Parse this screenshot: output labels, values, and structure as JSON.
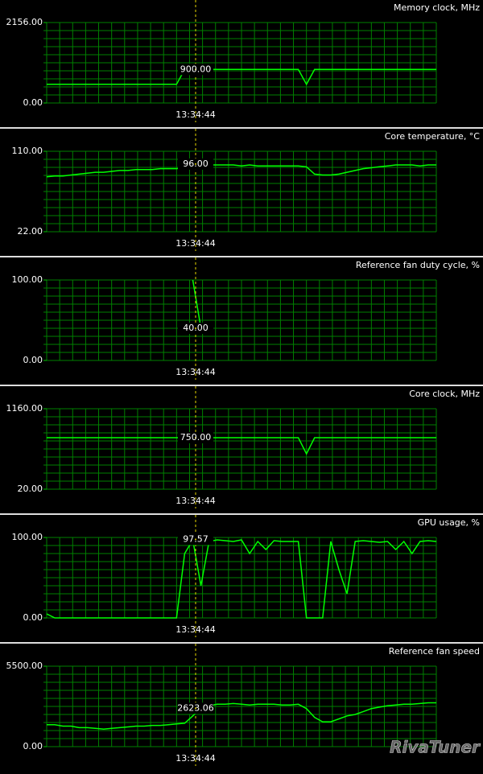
{
  "chart_data": [
    {
      "type": "line",
      "title": "Memory clock, MHz",
      "color": "#00ff00",
      "ylim": [
        0,
        2156
      ],
      "yticks": [
        {
          "value": 0,
          "label": "0.00"
        },
        {
          "value": 2156,
          "label": "2156.00"
        }
      ],
      "cursor": {
        "time": "13:34:44",
        "value": 900,
        "label": "900.00"
      },
      "values": [
        500,
        500,
        500,
        500,
        500,
        500,
        500,
        500,
        500,
        500,
        500,
        500,
        500,
        500,
        500,
        500,
        500,
        900,
        900,
        900,
        900,
        900,
        900,
        900,
        900,
        900,
        900,
        900,
        900,
        900,
        900,
        900,
        500,
        900,
        900,
        900,
        900,
        900,
        900,
        900,
        900,
        900,
        900,
        900,
        900,
        900,
        900,
        900,
        900
      ]
    },
    {
      "type": "line",
      "title": "Core temperature, °C",
      "color": "#00ff00",
      "ylim": [
        22,
        110
      ],
      "yticks": [
        {
          "value": 22,
          "label": "22.00"
        },
        {
          "value": 110,
          "label": "110.00"
        }
      ],
      "cursor": {
        "time": "13:34:44",
        "value": 96,
        "label": "96.00"
      },
      "values": [
        82,
        83,
        83,
        84,
        85,
        86,
        87,
        87,
        88,
        89,
        89,
        90,
        90,
        90,
        91,
        91,
        91,
        92,
        93,
        96,
        95,
        95,
        95,
        95,
        94,
        95,
        94,
        94,
        94,
        94,
        94,
        94,
        93,
        85,
        84,
        84,
        85,
        87,
        89,
        91,
        92,
        93,
        94,
        95,
        95,
        95,
        94,
        95,
        95
      ]
    },
    {
      "type": "line",
      "title": "Reference fan duty cycle, %",
      "color": "#00ff00",
      "ylim": [
        0,
        100
      ],
      "yticks": [
        {
          "value": 0,
          "label": "0.00"
        },
        {
          "value": 100,
          "label": "100.00"
        }
      ],
      "cursor": {
        "time": "13:34:44",
        "value": 40,
        "label": "40.00"
      },
      "values": [
        null,
        null,
        null,
        null,
        null,
        null,
        null,
        null,
        null,
        null,
        null,
        null,
        null,
        null,
        null,
        null,
        null,
        null,
        100,
        40,
        null,
        null,
        null,
        null,
        null,
        null,
        null,
        null,
        null,
        null,
        null,
        null,
        null,
        null,
        null,
        null,
        null,
        null,
        null,
        null,
        null,
        null,
        null,
        null,
        null,
        null,
        null,
        null,
        null
      ]
    },
    {
      "type": "line",
      "title": "Core clock, MHz",
      "color": "#00ff00",
      "ylim": [
        20,
        1160
      ],
      "yticks": [
        {
          "value": 20,
          "label": "20.00"
        },
        {
          "value": 1160,
          "label": "1160.00"
        }
      ],
      "cursor": {
        "time": "13:34:44",
        "value": 750,
        "label": "750.00"
      },
      "values": [
        750,
        750,
        750,
        750,
        750,
        750,
        750,
        750,
        750,
        750,
        750,
        750,
        750,
        750,
        750,
        750,
        750,
        750,
        750,
        750,
        750,
        750,
        750,
        750,
        750,
        750,
        750,
        750,
        750,
        750,
        750,
        750,
        520,
        750,
        750,
        750,
        750,
        750,
        750,
        750,
        750,
        750,
        750,
        750,
        750,
        750,
        750,
        750,
        750
      ]
    },
    {
      "type": "line",
      "title": "GPU usage, %",
      "color": "#00ff00",
      "ylim": [
        0,
        100
      ],
      "yticks": [
        {
          "value": 0,
          "label": "0.00"
        },
        {
          "value": 100,
          "label": "100.00"
        }
      ],
      "cursor": {
        "time": "13:34:44",
        "value": 97.57,
        "label": "97.57"
      },
      "values": [
        5,
        0,
        0,
        0,
        0,
        0,
        0,
        0,
        0,
        0,
        0,
        0,
        0,
        0,
        0,
        0,
        0,
        80,
        97,
        40,
        95,
        97,
        96,
        95,
        97,
        80,
        95,
        85,
        96,
        95,
        95,
        95,
        0,
        0,
        0,
        95,
        60,
        30,
        95,
        96,
        95,
        94,
        95,
        85,
        95,
        80,
        95,
        96,
        95
      ]
    },
    {
      "type": "line",
      "title": "Reference fan speed",
      "color": "#00ff00",
      "ylim": [
        0,
        5500
      ],
      "yticks": [
        {
          "value": 0,
          "label": "0.00"
        },
        {
          "value": 5500,
          "label": "5500.00"
        }
      ],
      "cursor": {
        "time": "13:34:44",
        "value": 2623.06,
        "label": "2623.06"
      },
      "values": [
        1500,
        1500,
        1400,
        1400,
        1300,
        1300,
        1250,
        1200,
        1250,
        1300,
        1350,
        1400,
        1400,
        1450,
        1450,
        1500,
        1550,
        1600,
        2100,
        2623,
        2800,
        2900,
        2900,
        2950,
        2900,
        2850,
        2900,
        2900,
        2900,
        2850,
        2850,
        2900,
        2600,
        2000,
        1700,
        1700,
        1900,
        2100,
        2200,
        2400,
        2600,
        2700,
        2800,
        2850,
        2900,
        2900,
        2950,
        3000,
        3000
      ]
    }
  ],
  "watermark": "RivaTuner"
}
